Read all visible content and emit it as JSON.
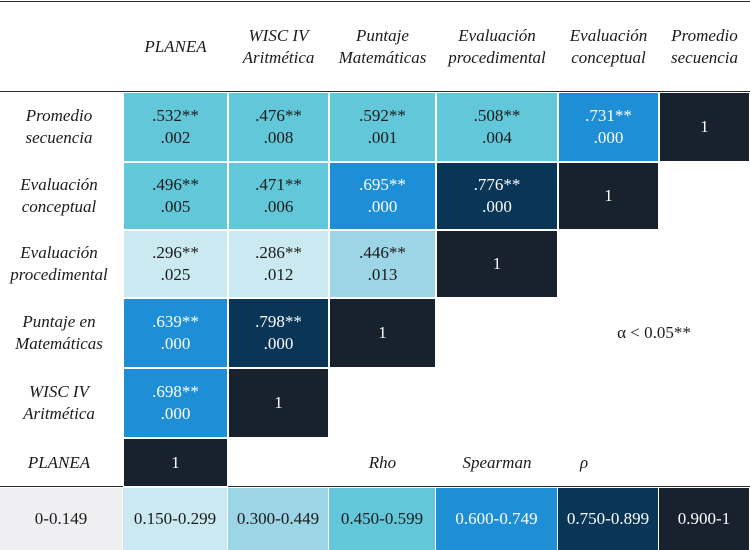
{
  "chart_data": {
    "type": "heatmap",
    "variables": [
      "PLANEA",
      "WISC IV Aritmética",
      "Puntaje Matemáticas",
      "Evaluación procedimental",
      "Evaluación conceptual",
      "Promedio secuencia"
    ],
    "column_headers": [
      "PLANEA",
      "WISC IV\nAritmética",
      "Puntaje\nMatemáticas",
      "Evaluación\nprocedimental",
      "Evaluación\nconceptual",
      "Promedio\nsecuencia"
    ],
    "row_labels": [
      "Promedio\nsecuencia",
      "Evaluación\nconceptual",
      "Evaluación\nprocedimental",
      "Puntaje en\nMatemáticas",
      "WISC IV\nAritmética",
      "PLANEA"
    ],
    "cells": [
      [
        {
          "rho": 0.532,
          "label": ".532**",
          "p": ".002"
        },
        {
          "rho": 0.476,
          "label": ".476**",
          "p": ".008"
        },
        {
          "rho": 0.592,
          "label": ".592**",
          "p": ".001"
        },
        {
          "rho": 0.508,
          "label": ".508**",
          "p": ".004"
        },
        {
          "rho": 0.731,
          "label": ".731**",
          "p": ".000"
        },
        {
          "rho": 1,
          "label": "1",
          "p": ""
        }
      ],
      [
        {
          "rho": 0.496,
          "label": ".496**",
          "p": ".005"
        },
        {
          "rho": 0.471,
          "label": ".471**",
          "p": ".006"
        },
        {
          "rho": 0.695,
          "label": ".695**",
          "p": ".000"
        },
        {
          "rho": 0.776,
          "label": ".776**",
          "p": ".000"
        },
        {
          "rho": 1,
          "label": "1",
          "p": ""
        }
      ],
      [
        {
          "rho": 0.296,
          "label": ".296**",
          "p": ".025"
        },
        {
          "rho": 0.286,
          "label": ".286**",
          "p": ".012"
        },
        {
          "rho": 0.446,
          "label": ".446**",
          "p": ".013"
        },
        {
          "rho": 1,
          "label": "1",
          "p": ""
        }
      ],
      [
        {
          "rho": 0.639,
          "label": ".639**",
          "p": ".000"
        },
        {
          "rho": 0.798,
          "label": ".798**",
          "p": ".000"
        },
        {
          "rho": 1,
          "label": "1",
          "p": ""
        }
      ],
      [
        {
          "rho": 0.698,
          "label": ".698**",
          "p": ".000"
        },
        {
          "rho": 1,
          "label": "1",
          "p": ""
        }
      ],
      [
        {
          "rho": 1,
          "label": "1",
          "p": ""
        }
      ]
    ],
    "significance_note": "α < 0.05**",
    "axis_caption": [
      "Rho",
      "Spearman",
      "ρ"
    ],
    "legend": [
      {
        "range": "0-0.149",
        "color": "#efeff1"
      },
      {
        "range": "0.150-0.299",
        "color": "#cbe9f1"
      },
      {
        "range": "0.300-0.449",
        "color": "#9cd5e6"
      },
      {
        "range": "0.450-0.599",
        "color": "#62c7d8"
      },
      {
        "range": "0.600-0.749",
        "color": "#1e8ed6"
      },
      {
        "range": "0.750-0.899",
        "color": "#093556"
      },
      {
        "range": "0.900-1",
        "color": "#18222f"
      }
    ],
    "colors": {
      "text_dark": "#1a1a1a",
      "text_light": "#ffffff",
      "rule": "#2a2a2a"
    }
  }
}
